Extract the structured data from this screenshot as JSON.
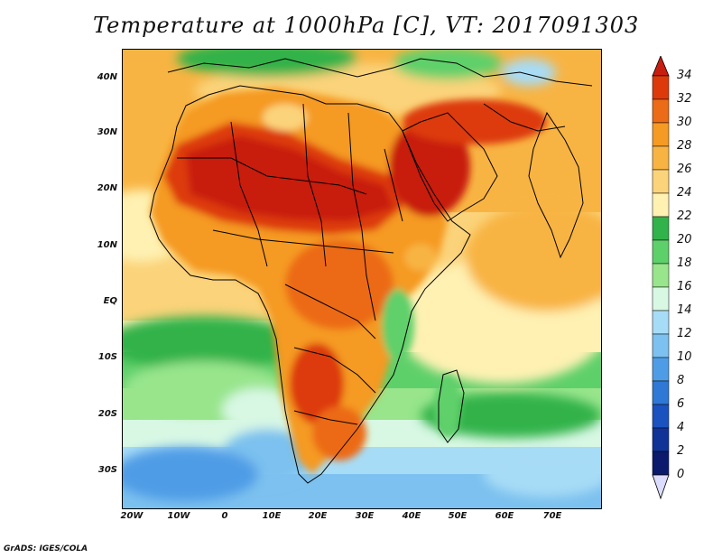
{
  "title": "Temperature at 1000hPa [C], VT: 2017091303",
  "footer": "GrADS: IGES/COLA",
  "y_axis": {
    "labels": [
      "40N",
      "30N",
      "20N",
      "10N",
      "EQ",
      "10S",
      "20S",
      "30S"
    ]
  },
  "x_axis": {
    "labels": [
      "20W",
      "10W",
      "0",
      "10E",
      "20E",
      "30E",
      "40E",
      "50E",
      "60E",
      "70E"
    ]
  },
  "colorbar": {
    "unit": "C",
    "ticks": [
      "34",
      "32",
      "30",
      "28",
      "26",
      "24",
      "22",
      "20",
      "18",
      "16",
      "14",
      "12",
      "10",
      "8",
      "6",
      "4",
      "2",
      "0"
    ],
    "colors": {
      "above_34": "#c81e0f",
      "32_34": "#dd3a0c",
      "30_32": "#ec6b16",
      "28_30": "#f59a22",
      "26_28": "#f8b443",
      "24_26": "#fbd37a",
      "22_24": "#fef1b2",
      "20_22": "#31b24a",
      "18_20": "#5ed06a",
      "16_18": "#98e58c",
      "14_16": "#d8f8e4",
      "12_14": "#a7dcf6",
      "10_12": "#7cc1ef",
      "8_10": "#4f9ce6",
      "6_8": "#2f78d6",
      "4_6": "#1a52c0",
      "2_4": "#113397",
      "0_2": "#0b1a6c",
      "below_0": "#dcdcff"
    }
  }
}
